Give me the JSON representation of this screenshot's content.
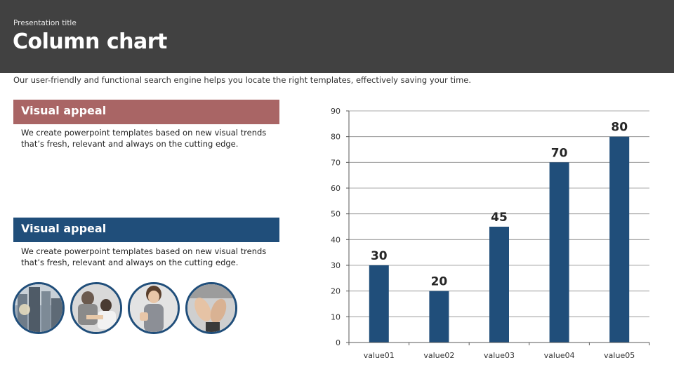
{
  "header": {
    "presentation_title": "Presentation title",
    "title": "Column chart"
  },
  "subtitle": "Our user-friendly and functional search engine helps you locate the right templates, effectively saving your time.",
  "sections": [
    {
      "heading": "Visual appeal",
      "text_line1": "We create powerpoint templates based on new visual trends",
      "text_line2": "that’s fresh, relevant and always on the cutting edge.",
      "color": "#a96565"
    },
    {
      "heading": "Visual appeal",
      "text_line1": "We create powerpoint templates based on new visual trends",
      "text_line2": "that’s fresh, relevant and always on the cutting edge.",
      "color": "#204e7a"
    }
  ],
  "photos": [
    "city-buildings-photo",
    "business-team-photo",
    "businesswoman-on-phone-photo",
    "applauding-hands-photo"
  ],
  "chart_data": {
    "type": "bar",
    "categories": [
      "value01",
      "value02",
      "value03",
      "value04",
      "value05"
    ],
    "values": [
      30,
      20,
      45,
      70,
      80
    ],
    "ylim": [
      0,
      90
    ],
    "yticks": [
      0,
      10,
      20,
      30,
      40,
      50,
      60,
      70,
      80,
      90
    ],
    "grid": true,
    "bar_color": "#204e7a",
    "title": "",
    "xlabel": "",
    "ylabel": ""
  }
}
